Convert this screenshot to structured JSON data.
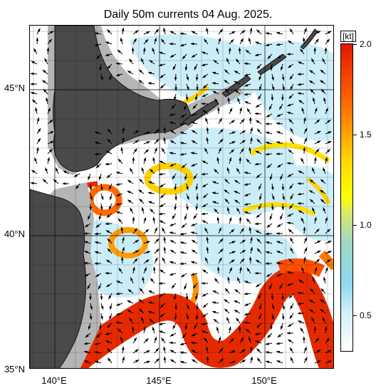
{
  "title": "Daily 50m currents 04 Aug. 2025.",
  "axes": {
    "lat_labels": [
      "45°N",
      "40°N",
      "35°N"
    ],
    "lon_labels": [
      "140°E",
      "145°E",
      "150°E"
    ]
  },
  "colorbar": {
    "unit": "[kt]",
    "ticks": [
      "2.0",
      "1.5",
      "1.0",
      "0.5"
    ]
  },
  "colors": {
    "land": "#4a4a4a",
    "shelf": "#b5b5b5",
    "strong_current": "#e62a00",
    "moderate_current": "#ffcc00",
    "weak_current": "#9fdcf0"
  }
}
